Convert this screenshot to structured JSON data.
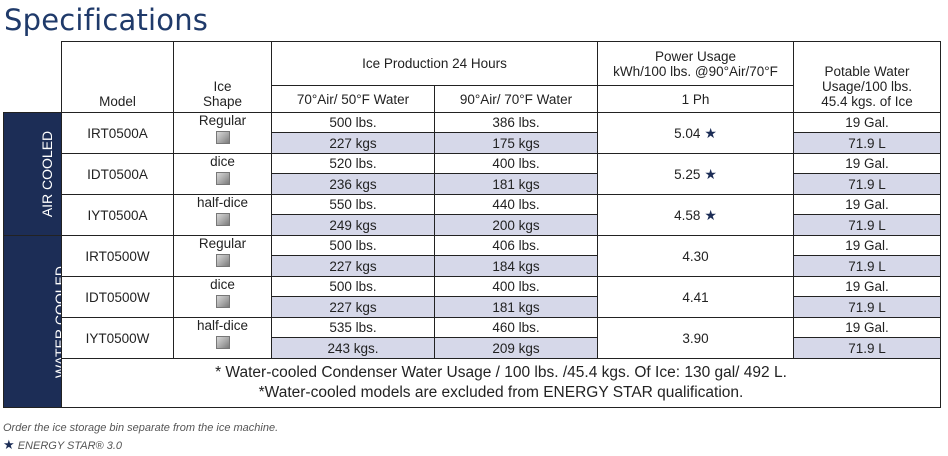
{
  "title": "Specifications",
  "headers": {
    "model": "Model",
    "ice_shape": "Ice\nShape",
    "ice_production": "Ice Production 24 Hours",
    "water1": "70°Air/ 50°F Water",
    "water2": "90°Air/ 70°F Water",
    "power_l1": "Power Usage",
    "power_l2": "kWh/100 lbs. @90°Air/70°F",
    "power_sub": "1 Ph",
    "potable_l1": "Potable Water",
    "potable_l2": "Usage/100 lbs.",
    "potable_l3": "45.4 kgs. of Ice"
  },
  "groups": {
    "air": "AIR COOLED",
    "water": "WATER COOLED"
  },
  "rows": [
    {
      "model": "IRT0500A",
      "shape": "Regular",
      "a_lbs": "500 lbs.",
      "a_kgs": "227 kgs",
      "b_lbs": "386 lbs.",
      "b_kgs": "175 kgs",
      "power": "5.04",
      "gal": "19 Gal.",
      "l": "71.9 L"
    },
    {
      "model": "IDT0500A",
      "shape": "dice",
      "a_lbs": "520 lbs.",
      "a_kgs": "236 kgs",
      "b_lbs": "400 lbs.",
      "b_kgs": "181 kgs",
      "power": "5.25",
      "gal": "19 Gal.",
      "l": "71.9 L"
    },
    {
      "model": "IYT0500A",
      "shape": "half-dice",
      "a_lbs": "550 lbs.",
      "a_kgs": "249 kgs",
      "b_lbs": "440 lbs.",
      "b_kgs": "200 kgs",
      "power": "4.58",
      "gal": "19 Gal.",
      "l": "71.9 L"
    },
    {
      "model": "IRT0500W",
      "shape": "Regular",
      "a_lbs": "500 lbs.",
      "a_kgs": "227 kgs",
      "b_lbs": "406 lbs.",
      "b_kgs": "184 kgs",
      "power": "4.30",
      "gal": "19 Gal.",
      "l": "71.9 L"
    },
    {
      "model": "IDT0500W",
      "shape": "dice",
      "a_lbs": "500 lbs.",
      "a_kgs": "227 kgs",
      "b_lbs": "400 lbs.",
      "b_kgs": "181 kgs",
      "power": "4.41",
      "gal": "19 Gal.",
      "l": "71.9 L"
    },
    {
      "model": "IYT0500W",
      "shape": "half-dice",
      "a_lbs": "535 lbs.",
      "a_kgs": "243 kgs.",
      "b_lbs": "460 lbs.",
      "b_kgs": "209 kgs",
      "power": "3.90",
      "gal": "19 Gal.",
      "l": "71.9 L"
    }
  ],
  "star_glyph": "★",
  "notes": {
    "line1": "* Water-cooled Condenser Water Usage / 100 lbs. /45.4 kgs. Of Ice: 130 gal/ 492 L.",
    "line2": "*Water-cooled models are excluded from ENERGY STAR qualification."
  },
  "footer": {
    "order_note": "Order the ice storage bin separate from the ice machine.",
    "energy_star": "ENERGY STAR® 3.0"
  },
  "colors": {
    "navy": "#1c2d56",
    "shade": "#d6d8e9",
    "title": "#1f3a6a"
  }
}
